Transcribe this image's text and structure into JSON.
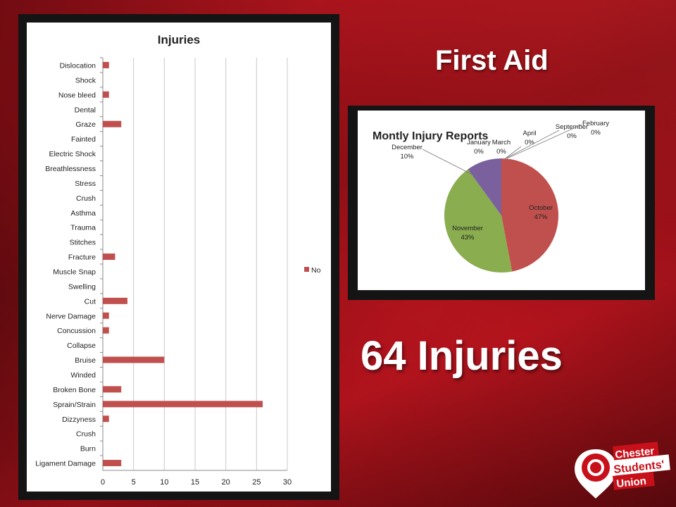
{
  "slide": {
    "title": "First Aid",
    "total_label": "64 Injuries"
  },
  "logo": {
    "line1": "Chester",
    "line2": "Students'",
    "line3": "Union"
  },
  "chart_data": [
    {
      "type": "bar",
      "orientation": "horizontal",
      "title": "Injuries",
      "xlim": [
        0,
        30
      ],
      "xticks": [
        0,
        5,
        10,
        15,
        20,
        25,
        30
      ],
      "grid": true,
      "legend_position": "right",
      "categories": [
        "Dislocation",
        "Shock",
        "Nose bleed",
        "Dental",
        "Graze",
        "Fainted",
        "Electric Shock",
        "Breathlessness",
        "Stress",
        "Crush",
        "Asthma",
        "Trauma",
        "Stitches",
        "Fracture",
        "Muscle Snap",
        "Swelling",
        "Cut",
        "Nerve Damage",
        "Concussion",
        "Collapse",
        "Bruise",
        "Winded",
        "Broken Bone",
        "Sprain/Strain",
        "Dizzyness",
        "Crush",
        "Burn",
        "Ligament Damage"
      ],
      "series": [
        {
          "name": "No",
          "color": "#c0504d",
          "values": [
            1,
            0,
            1,
            0,
            3,
            0,
            0,
            0,
            0,
            0,
            0,
            0,
            0,
            2,
            0,
            0,
            4,
            1,
            1,
            0,
            10,
            0,
            3,
            26,
            1,
            0,
            0,
            3
          ]
        }
      ]
    },
    {
      "type": "pie",
      "title": "Montly Injury Reports",
      "slices": [
        {
          "label": "October",
          "percent_label": "47%",
          "value": 47,
          "color": "#c0504d"
        },
        {
          "label": "November",
          "percent_label": "43%",
          "value": 43,
          "color": "#8aad4f"
        },
        {
          "label": "December",
          "percent_label": "10%",
          "value": 10,
          "color": "#7a619e"
        },
        {
          "label": "January",
          "percent_label": "0%",
          "value": 0,
          "color": "#4bacc6"
        },
        {
          "label": "March",
          "percent_label": "0%",
          "value": 0,
          "color": "#f79646"
        },
        {
          "label": "April",
          "percent_label": "0%",
          "value": 0,
          "color": "#2c4d75"
        },
        {
          "label": "September",
          "percent_label": "0%",
          "value": 0,
          "color": "#772c2a"
        },
        {
          "label": "February",
          "percent_label": "0%",
          "value": 0,
          "color": "#5f7530"
        }
      ]
    }
  ]
}
